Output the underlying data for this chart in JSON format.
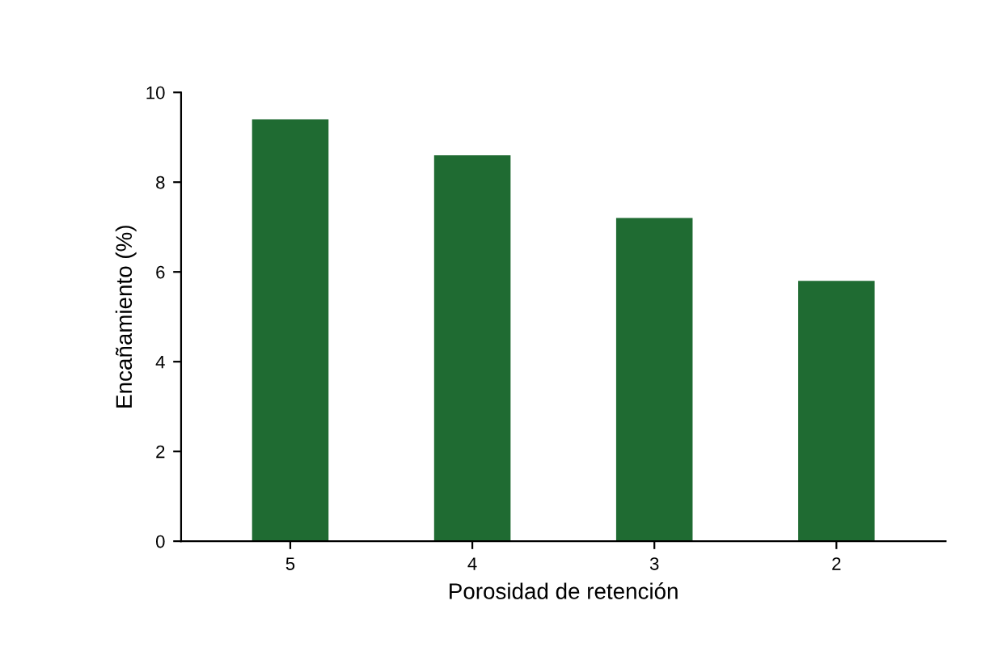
{
  "chart_data": {
    "type": "bar",
    "xlabel": "Porosidad de retención",
    "ylabel": "Encañamiento (%)",
    "categories": [
      "5",
      "4",
      "3",
      "2"
    ],
    "values": [
      9.4,
      8.6,
      7.2,
      5.8
    ],
    "color": "#1f6b32",
    "ylim": [
      0,
      10
    ],
    "yticks": [
      0,
      2,
      4,
      6,
      8,
      10
    ],
    "grid": false
  }
}
